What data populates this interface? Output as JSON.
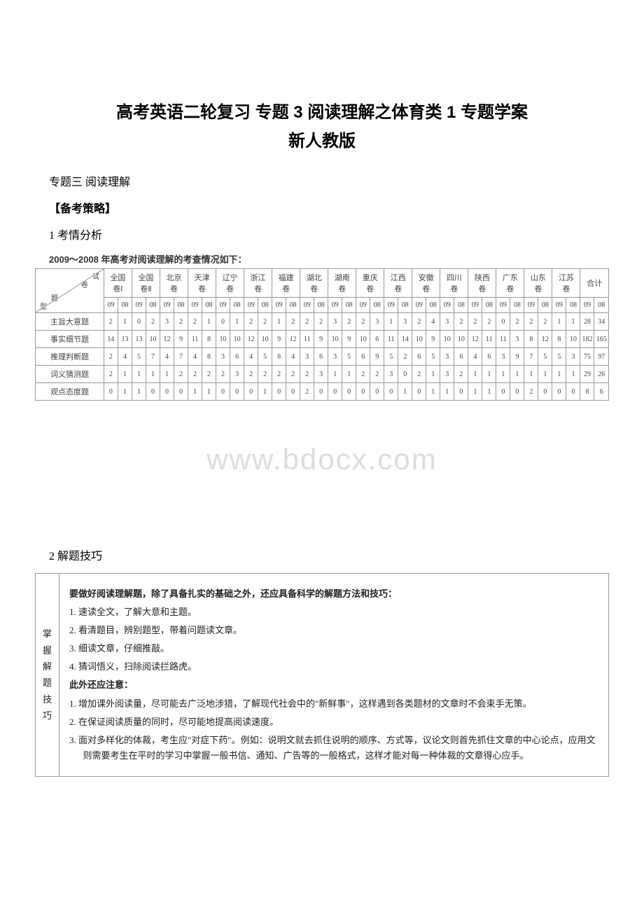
{
  "title_line1": "高考英语二轮复习 专题 3 阅读理解之体育类 1 专题学案",
  "title_line2": "新人教版",
  "section3": "专题三 阅读理解",
  "beikao": "【备考策略】",
  "kqfx": "1 考情分析",
  "table_caption": "2009～2008 年高考对阅读理解的考查情况如下：",
  "diag": {
    "shi": "试",
    "juan": "卷",
    "ti": "题",
    "xing": "型"
  },
  "provinces": [
    "全国\n卷Ⅰ",
    "全国\n卷Ⅱ",
    "北京\n卷",
    "天津\n卷",
    "辽宁\n卷",
    "浙江\n卷",
    "福建\n卷",
    "湖北\n卷",
    "湖南\n卷",
    "重庆\n卷",
    "江西\n卷",
    "安徽\n卷",
    "四川\n卷",
    "陕西\n卷",
    "广东\n卷",
    "山东\n卷",
    "江苏\n卷"
  ],
  "heji": "合计",
  "years": [
    "09",
    "08"
  ],
  "rows": [
    {
      "label": "主旨大意题",
      "vals": [
        2,
        1,
        0,
        2,
        3,
        2,
        2,
        1,
        0,
        1,
        2,
        2,
        1,
        2,
        2,
        2,
        3,
        2,
        2,
        3,
        1,
        3,
        2,
        4,
        3,
        2,
        2,
        2,
        0,
        2,
        2,
        2,
        1,
        1
      ],
      "sum": [
        28,
        34
      ]
    },
    {
      "label": "事实细节题",
      "vals": [
        14,
        13,
        13,
        10,
        12,
        9,
        11,
        8,
        10,
        10,
        12,
        10,
        9,
        12,
        11,
        9,
        10,
        9,
        10,
        6,
        11,
        14,
        10,
        9,
        10,
        10,
        12,
        11,
        11,
        3,
        8,
        12,
        8,
        10
      ],
      "sum": [
        182,
        165
      ]
    },
    {
      "label": "推理判断题",
      "vals": [
        2,
        4,
        5,
        7,
        4,
        7,
        4,
        8,
        3,
        6,
        4,
        5,
        8,
        4,
        3,
        6,
        3,
        5,
        6,
        9,
        5,
        2,
        6,
        5,
        3,
        6,
        4,
        6,
        3,
        9,
        7,
        5,
        5,
        3
      ],
      "sum": [
        75,
        97
      ]
    },
    {
      "label": "词义猜测题",
      "vals": [
        2,
        1,
        1,
        1,
        1,
        2,
        2,
        2,
        2,
        3,
        2,
        2,
        2,
        2,
        2,
        3,
        1,
        1,
        2,
        2,
        3,
        0,
        2,
        1,
        3,
        2,
        1,
        1,
        1,
        1,
        1,
        1,
        1,
        1
      ],
      "sum": [
        29,
        26
      ]
    },
    {
      "label": "观点态度题",
      "vals": [
        0,
        1,
        1,
        0,
        0,
        0,
        1,
        1,
        0,
        0,
        0,
        1,
        0,
        0,
        2,
        0,
        0,
        0,
        0,
        0,
        0,
        1,
        0,
        1,
        1,
        0,
        1,
        1,
        0,
        0,
        2,
        0,
        0,
        0
      ],
      "sum": [
        8,
        6
      ]
    }
  ],
  "watermark": "www.bdocx.com",
  "jtjiqiao": "2 解题技巧",
  "tips_vcol": "掌握解题技巧",
  "tips": {
    "p0": "要做好阅读理解题，除了具备扎实的基础之外，还应具备科学的解题方法和技巧：",
    "p1": "1. 速读全文，了解大意和主题。",
    "p2": "2. 看清题目，辨别题型，带着问题读文章。",
    "p3": "3. 细读文章，仔细推敲。",
    "p4": "4. 猜词悟义，扫除阅读拦路虎。",
    "p5": "此外还应注意：",
    "p6": "1. 增加课外阅读量，尽可能去广泛地涉猎，了解现代社会中的\"新鲜事\"，这样遇到各类题材的文章时不会束手无策。",
    "p7": "2. 在保证阅读质量的同时，尽可能地提高阅读速度。",
    "p8": "3. 面对多样化的体裁，考生应\"对症下药\"。例如：说明文就去抓住说明的顺序、方式等，议论文则首先抓住文章的中心论点，应用文则需要考生在平时的学习中掌握一般书信、通知、广告等的一般格式，这样才能对每一种体裁的文章得心应手。"
  }
}
